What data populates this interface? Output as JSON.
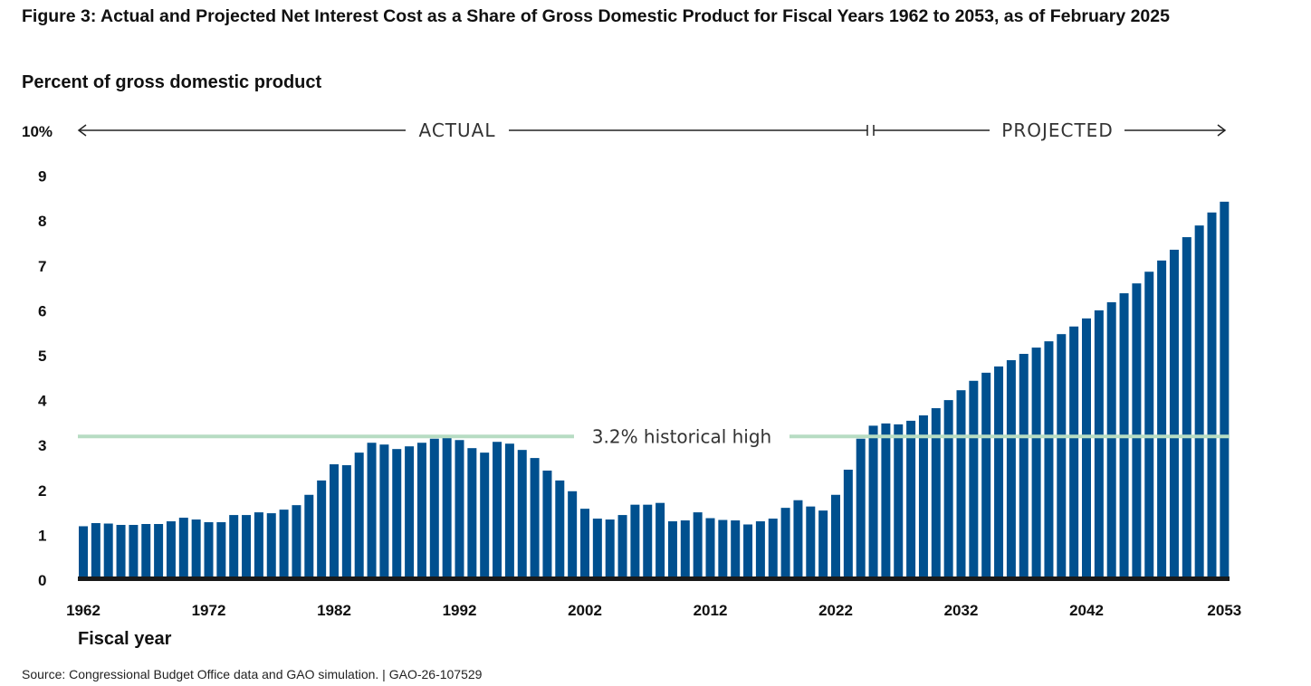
{
  "chart_data": {
    "type": "bar",
    "title": "Figure 3: Actual and Projected Net Interest Cost as a Share of Gross Domestic Product for Fiscal Years 1962 to 2053, as of February 2025",
    "ylabel": "Percent of gross domestic product",
    "xlabel": "Fiscal year",
    "ylim": [
      0,
      10
    ],
    "y_ticks": [
      "0",
      "1",
      "2",
      "3",
      "4",
      "5",
      "6",
      "7",
      "8",
      "9",
      "10%"
    ],
    "x_ticks": [
      "1962",
      "1972",
      "1982",
      "1992",
      "2002",
      "2012",
      "2022",
      "2032",
      "2042",
      "2053"
    ],
    "x_start": 1962,
    "x_end": 2053,
    "bar_color": "#00508f",
    "values": [
      1.2,
      1.27,
      1.26,
      1.23,
      1.23,
      1.25,
      1.25,
      1.31,
      1.39,
      1.35,
      1.29,
      1.29,
      1.45,
      1.45,
      1.51,
      1.49,
      1.57,
      1.67,
      1.9,
      2.22,
      2.58,
      2.56,
      2.84,
      3.06,
      3.02,
      2.92,
      2.98,
      3.06,
      3.15,
      3.19,
      3.12,
      2.94,
      2.84,
      3.08,
      3.04,
      2.9,
      2.72,
      2.44,
      2.22,
      1.98,
      1.59,
      1.37,
      1.35,
      1.45,
      1.68,
      1.68,
      1.72,
      1.31,
      1.33,
      1.51,
      1.38,
      1.34,
      1.33,
      1.24,
      1.31,
      1.37,
      1.61,
      1.78,
      1.64,
      1.55,
      1.9,
      2.46,
      3.15,
      3.44,
      3.49,
      3.47,
      3.55,
      3.67,
      3.83,
      4.01,
      4.23,
      4.44,
      4.62,
      4.76,
      4.9,
      5.04,
      5.18,
      5.32,
      5.48,
      5.65,
      5.83,
      6.01,
      6.19,
      6.39,
      6.61,
      6.87,
      7.12,
      7.36,
      7.64,
      7.9,
      8.19,
      8.43
    ],
    "reference_line": {
      "value": 3.2,
      "label": "3.2% historical high",
      "color": "#b7dcc3"
    },
    "periods": {
      "actual_label": "ACTUAL",
      "projected_label": "PROJECTED",
      "split_after_year": 2024
    }
  },
  "source": "Source: Congressional Budget Office data and GAO simulation.  |  GAO-26-107529"
}
